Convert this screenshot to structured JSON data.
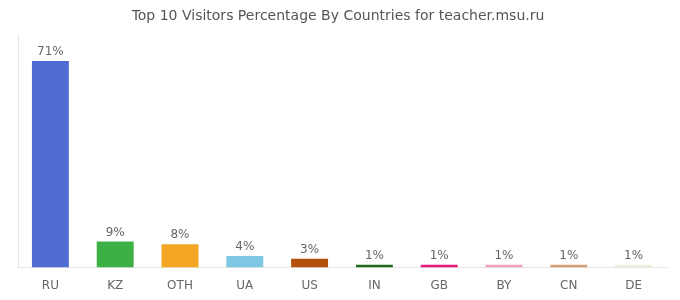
{
  "chart_data": {
    "type": "bar",
    "title": "Top 10 Visitors Percentage By Countries for teacher.msu.ru",
    "categories": [
      "RU",
      "KZ",
      "OTH",
      "UA",
      "US",
      "IN",
      "GB",
      "BY",
      "CN",
      "DE"
    ],
    "values": [
      71,
      9,
      8,
      4,
      3,
      1,
      1,
      1,
      1,
      1
    ],
    "value_labels": [
      "71%",
      "9%",
      "8%",
      "4%",
      "3%",
      "1%",
      "1%",
      "1%",
      "1%",
      "1%"
    ],
    "colors": [
      "#4f6cd4",
      "#3cb045",
      "#f5a623",
      "#7ec8e3",
      "#b5500a",
      "#1e6b1e",
      "#e8197a",
      "#f0a0b8",
      "#d4a07a",
      "#f0eedc"
    ],
    "ylim": [
      0,
      80
    ],
    "grid": false,
    "data_labels": true,
    "tick_labels": "x"
  }
}
